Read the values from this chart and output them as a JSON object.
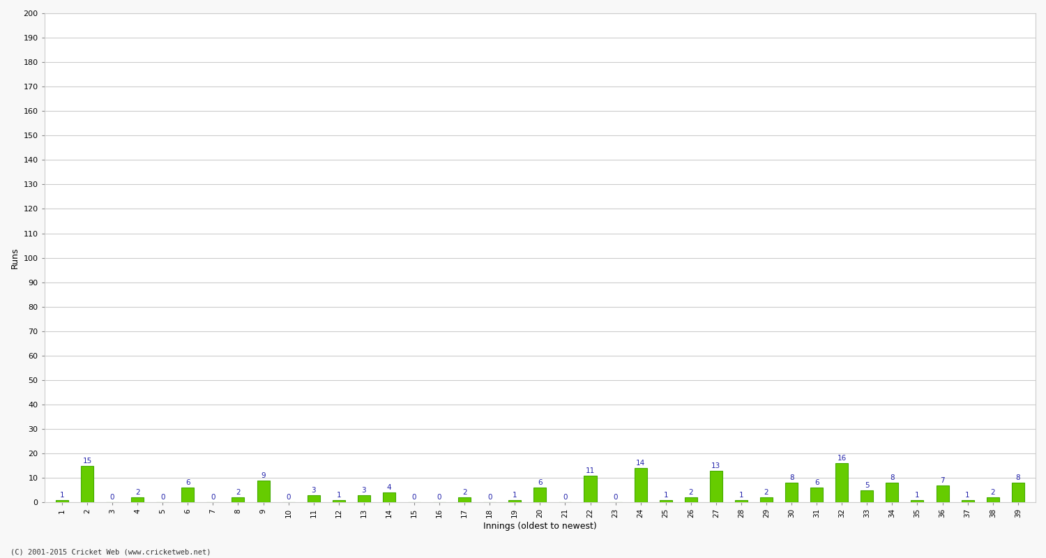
{
  "innings": [
    1,
    2,
    3,
    4,
    5,
    6,
    7,
    8,
    9,
    10,
    11,
    12,
    13,
    14,
    15,
    16,
    17,
    18,
    19,
    20,
    21,
    22,
    23,
    24,
    25,
    26,
    27,
    28,
    29,
    30,
    31,
    32,
    33,
    34,
    35,
    36,
    37,
    38,
    39
  ],
  "runs": [
    1,
    15,
    0,
    2,
    0,
    6,
    0,
    2,
    9,
    0,
    3,
    1,
    3,
    4,
    0,
    0,
    2,
    0,
    1,
    6,
    0,
    11,
    0,
    14,
    1,
    2,
    13,
    1,
    2,
    8,
    6,
    16,
    5,
    8,
    1,
    7,
    1,
    2,
    8
  ],
  "bar_color": "#66cc00",
  "bar_edge_color": "#44aa00",
  "label_color": "#2222aa",
  "ylabel": "Runs",
  "xlabel": "Innings (oldest to newest)",
  "ylim": [
    0,
    200
  ],
  "yticks": [
    0,
    10,
    20,
    30,
    40,
    50,
    60,
    70,
    80,
    90,
    100,
    110,
    120,
    130,
    140,
    150,
    160,
    170,
    180,
    190,
    200
  ],
  "grid_color": "#cccccc",
  "bg_color": "#f8f8f8",
  "plot_bg_color": "#ffffff",
  "footer": "(C) 2001-2015 Cricket Web (www.cricketweb.net)",
  "figsize": [
    15.0,
    8.0
  ],
  "dpi": 100
}
